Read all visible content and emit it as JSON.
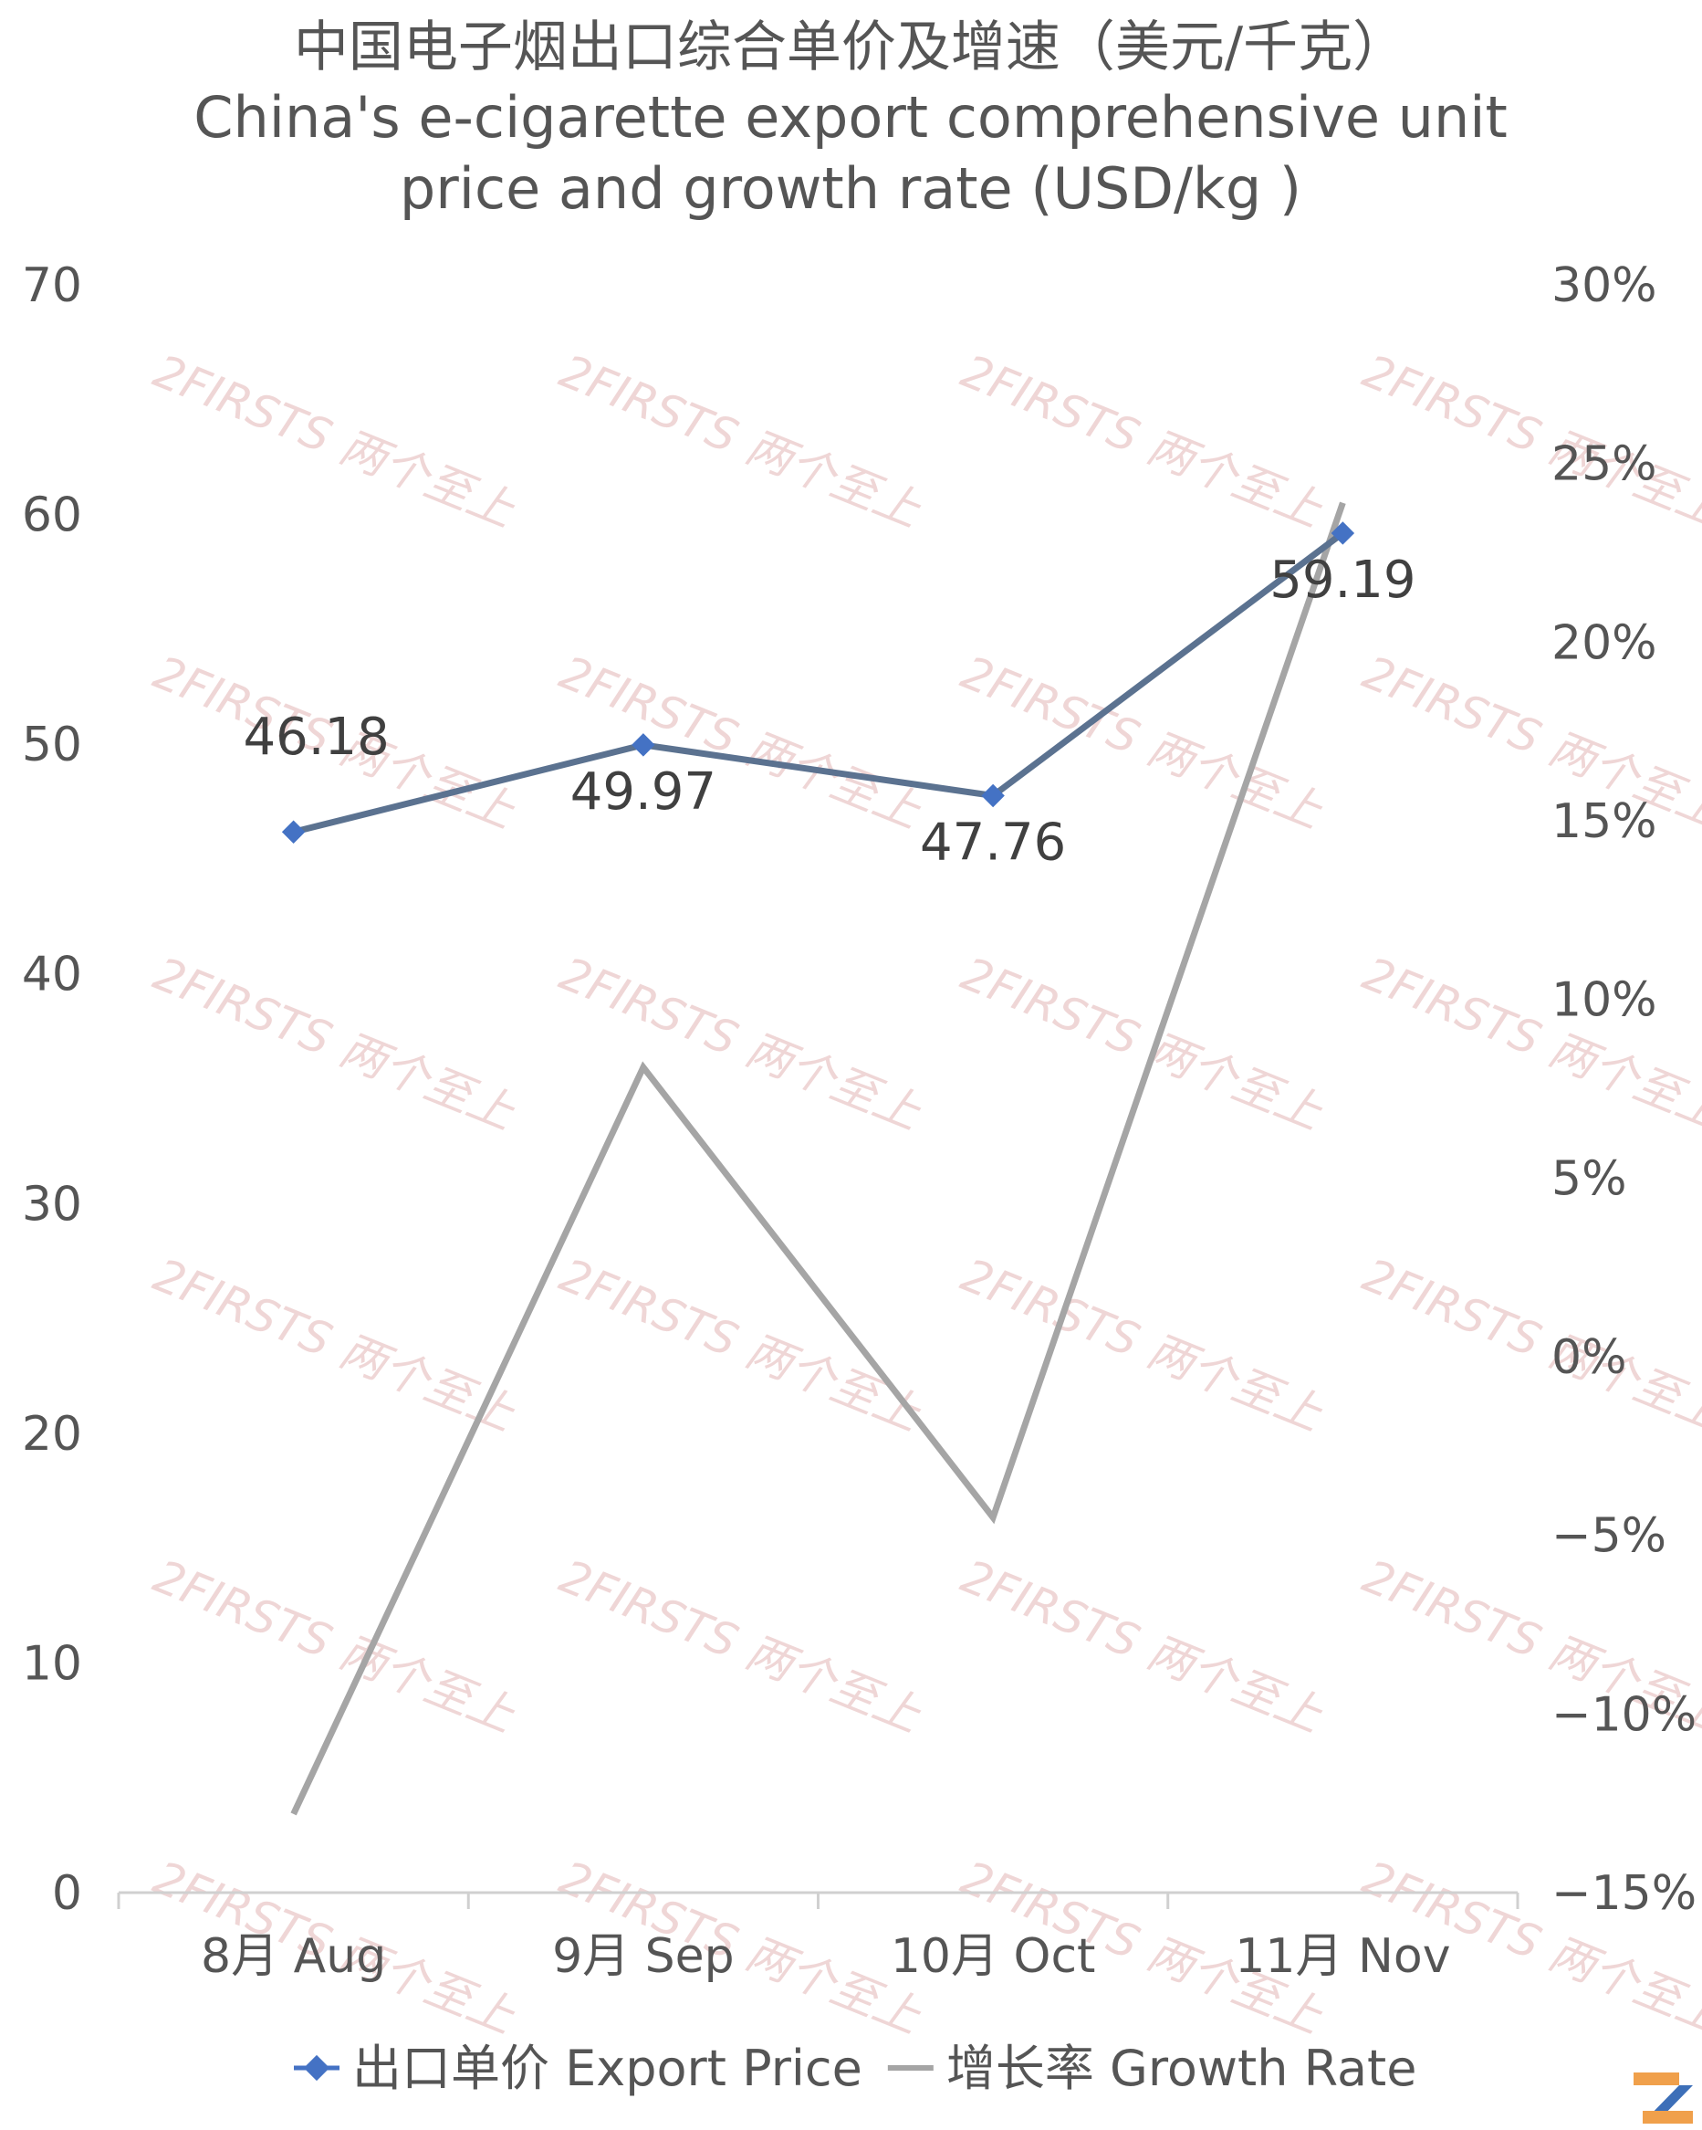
{
  "chart_data": {
    "type": "line",
    "title_line1": "中国电子烟出口综合单价及增速（美元/千克）",
    "title_line2": "China's e-cigarette export comprehensive unit",
    "title_line3": "price and growth rate (USD/kg )",
    "categories": [
      "8月 Aug",
      "9月 Sep",
      "10月 Oct",
      "11月 Nov"
    ],
    "y_left": {
      "min": 0,
      "max": 70,
      "step": 10,
      "ticks": [
        "0",
        "10",
        "20",
        "30",
        "40",
        "50",
        "60",
        "70"
      ]
    },
    "y_right": {
      "min": -15,
      "max": 30,
      "step": 5,
      "ticks": [
        "−15%",
        "−10%",
        "−5%",
        "0%",
        "5%",
        "10%",
        "15%",
        "20%",
        "25%",
        "30%"
      ]
    },
    "series": [
      {
        "name": "出口单价 Export Price",
        "axis": "left",
        "color": "#5b7290",
        "marker_color": "#4472c4",
        "values": [
          46.18,
          49.97,
          47.76,
          59.19
        ],
        "labels": [
          "46.18",
          "49.97",
          "47.76",
          "59.19"
        ]
      },
      {
        "name": "增长率 Growth Rate",
        "axis": "right",
        "color": "#a5a5a5",
        "values": [
          -12.8,
          8.1,
          -4.5,
          23.9
        ]
      }
    ],
    "legend_position": "bottom",
    "grid": false
  },
  "watermark": {
    "text": "2FIRSTS 两个至上"
  }
}
